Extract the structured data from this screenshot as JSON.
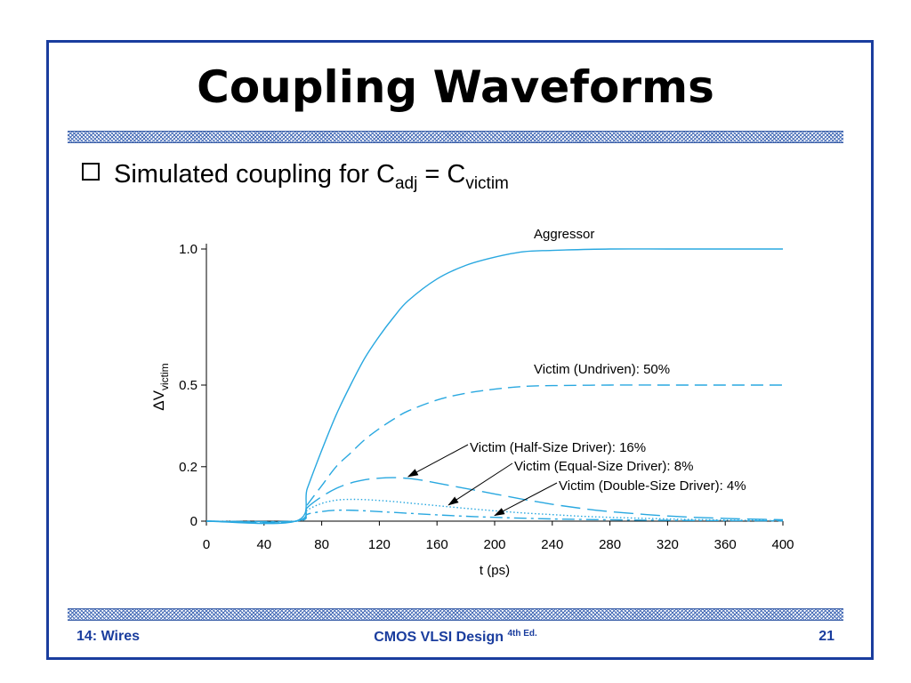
{
  "slide": {
    "title": "Coupling Waveforms",
    "bullet": {
      "text_before": "Simulated coupling for C",
      "sub1": "adj",
      "text_mid": " = C",
      "sub2": "victim"
    },
    "footer": {
      "left": "14: Wires",
      "center": "CMOS VLSI Design",
      "center_sup": "4th Ed.",
      "right": "21"
    },
    "accent_color": "#1a3d9e"
  },
  "chart_data": {
    "type": "line",
    "xlabel": "t (ps)",
    "ylabel_main": "ΔV",
    "ylabel_sub": "victim",
    "xlim": [
      0,
      400
    ],
    "ylim": [
      0,
      1.0
    ],
    "xticks": [
      0,
      40,
      80,
      120,
      160,
      200,
      240,
      280,
      320,
      360,
      400
    ],
    "yticks": [
      0,
      0.2,
      0.5,
      1.0
    ],
    "ytick_labels": [
      "0",
      "0.2",
      "0.5",
      "1.0"
    ],
    "line_color": "#29a8e0",
    "series": [
      {
        "name": "Aggressor",
        "style": "solid",
        "x": [
          0,
          62,
          70,
          80,
          90,
          100,
          110,
          120,
          130,
          140,
          160,
          180,
          200,
          220,
          240,
          280,
          320,
          360,
          400
        ],
        "y": [
          0,
          0,
          0.12,
          0.26,
          0.39,
          0.5,
          0.6,
          0.68,
          0.75,
          0.81,
          0.89,
          0.94,
          0.97,
          0.99,
          0.995,
          1.0,
          1.0,
          1.0,
          1.0
        ]
      },
      {
        "name": "Victim (Undriven): 50%",
        "style": "dashed",
        "x": [
          0,
          62,
          70,
          80,
          90,
          100,
          110,
          120,
          130,
          140,
          160,
          180,
          200,
          220,
          240,
          280,
          320,
          360,
          400
        ],
        "y": [
          0,
          0,
          0.06,
          0.13,
          0.2,
          0.25,
          0.3,
          0.34,
          0.375,
          0.405,
          0.445,
          0.47,
          0.485,
          0.495,
          0.498,
          0.5,
          0.5,
          0.5,
          0.5
        ]
      },
      {
        "name": "Victim (Half-Size Driver): 16%",
        "style": "longdash",
        "x": [
          0,
          62,
          70,
          80,
          90,
          100,
          110,
          120,
          130,
          140,
          150,
          160,
          180,
          200,
          220,
          240,
          260,
          280,
          320,
          360,
          400
        ],
        "y": [
          0,
          0,
          0.05,
          0.09,
          0.12,
          0.14,
          0.152,
          0.158,
          0.16,
          0.157,
          0.15,
          0.14,
          0.12,
          0.1,
          0.08,
          0.062,
          0.047,
          0.035,
          0.019,
          0.01,
          0.005
        ]
      },
      {
        "name": "Victim (Equal-Size Driver): 8%",
        "style": "dotted",
        "x": [
          0,
          62,
          70,
          80,
          90,
          100,
          110,
          120,
          130,
          140,
          160,
          180,
          200,
          220,
          240,
          260,
          280,
          320,
          360,
          400
        ],
        "y": [
          0,
          0,
          0.04,
          0.065,
          0.077,
          0.08,
          0.079,
          0.076,
          0.072,
          0.067,
          0.057,
          0.047,
          0.038,
          0.03,
          0.024,
          0.018,
          0.014,
          0.008,
          0.004,
          0.002
        ]
      },
      {
        "name": "Victim (Double-Size Driver): 4%",
        "style": "dashdot",
        "x": [
          0,
          62,
          70,
          80,
          90,
          100,
          110,
          120,
          140,
          160,
          180,
          200,
          240,
          280,
          320,
          360,
          400
        ],
        "y": [
          0,
          0,
          0.025,
          0.035,
          0.04,
          0.04,
          0.038,
          0.035,
          0.029,
          0.023,
          0.018,
          0.014,
          0.008,
          0.005,
          0.003,
          0.002,
          0.001
        ]
      }
    ],
    "annotations": [
      {
        "text": "Aggressor",
        "series": 0,
        "arrow": false
      },
      {
        "text": "Victim (Undriven): 50%",
        "series": 1,
        "arrow": false
      },
      {
        "text": "Victim (Half-Size Driver): 16%",
        "series": 2,
        "arrow": true,
        "arrow_x": 140
      },
      {
        "text": "Victim (Equal-Size Driver): 8%",
        "series": 3,
        "arrow": true,
        "arrow_x": 168
      },
      {
        "text": "Victim (Double-Size Driver): 4%",
        "series": 4,
        "arrow": true,
        "arrow_x": 200
      }
    ]
  }
}
